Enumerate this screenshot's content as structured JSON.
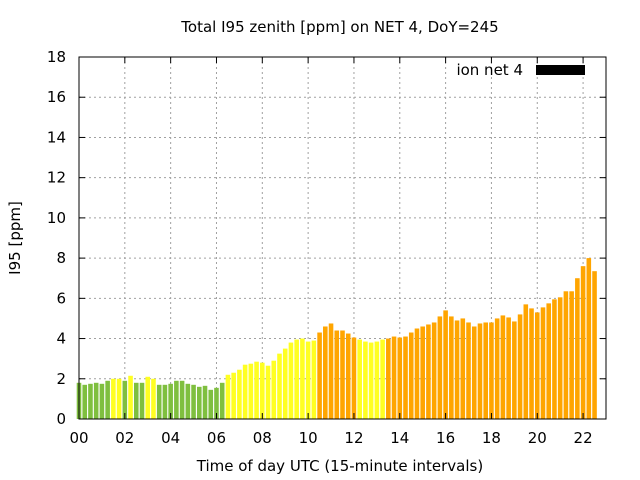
{
  "chart_data": {
    "type": "bar",
    "title": "Total I95 zenith [ppm] on NET 4, DoY=245",
    "xlabel": "Time of day UTC (15-minute intervals)",
    "ylabel": "I95 [ppm]",
    "xlim": [
      0,
      23.0
    ],
    "ylim": [
      0,
      18
    ],
    "bar_width_hours": 0.2,
    "x_ticks": [
      {
        "value": 0,
        "label": "00"
      },
      {
        "value": 2,
        "label": "02"
      },
      {
        "value": 4,
        "label": "04"
      },
      {
        "value": 6,
        "label": "06"
      },
      {
        "value": 8,
        "label": "08"
      },
      {
        "value": 10,
        "label": "10"
      },
      {
        "value": 12,
        "label": "12"
      },
      {
        "value": 14,
        "label": "14"
      },
      {
        "value": 16,
        "label": "16"
      },
      {
        "value": 18,
        "label": "18"
      },
      {
        "value": 20,
        "label": "20"
      },
      {
        "value": 22,
        "label": "22"
      }
    ],
    "y_ticks": [
      {
        "value": 0,
        "label": "0"
      },
      {
        "value": 2,
        "label": "2"
      },
      {
        "value": 4,
        "label": "4"
      },
      {
        "value": 6,
        "label": "6"
      },
      {
        "value": 8,
        "label": "8"
      },
      {
        "value": 10,
        "label": "10"
      },
      {
        "value": 12,
        "label": "12"
      },
      {
        "value": 14,
        "label": "14"
      },
      {
        "value": 16,
        "label": "16"
      },
      {
        "value": 18,
        "label": "18"
      }
    ],
    "grid": true,
    "legend": {
      "label": "ion net 4",
      "position": "top-right",
      "color": "#000000"
    },
    "colors": {
      "green": "#7fbf3f",
      "yellow": "#ffff22",
      "orange": "#ffa500"
    },
    "series": [
      {
        "name": "ion net 4",
        "x_start_hour": 0,
        "x_step_hours": 0.25,
        "values": [
          1.8,
          1.7,
          1.75,
          1.8,
          1.75,
          1.9,
          2.0,
          2.0,
          1.9,
          2.15,
          1.8,
          1.8,
          2.1,
          2.0,
          1.7,
          1.7,
          1.75,
          1.9,
          1.9,
          1.75,
          1.7,
          1.6,
          1.65,
          1.45,
          1.55,
          1.8,
          2.2,
          2.3,
          2.45,
          2.7,
          2.75,
          2.85,
          2.8,
          2.65,
          2.9,
          3.25,
          3.5,
          3.8,
          3.95,
          4.0,
          3.85,
          3.9,
          4.3,
          4.6,
          4.75,
          4.4,
          4.4,
          4.25,
          4.05,
          3.95,
          3.85,
          3.8,
          3.85,
          3.95,
          4.0,
          4.1,
          4.05,
          4.1,
          4.3,
          4.5,
          4.6,
          4.7,
          4.8,
          5.1,
          5.4,
          5.1,
          4.9,
          5.0,
          4.8,
          4.6,
          4.75,
          4.8,
          4.8,
          5.0,
          5.15,
          5.05,
          4.85,
          5.2,
          5.7,
          5.5,
          5.3,
          5.55,
          5.75,
          5.95,
          6.05,
          6.35,
          6.35,
          7.0,
          7.6,
          8.0,
          7.35
        ],
        "colors": [
          "green",
          "green",
          "green",
          "green",
          "green",
          "green",
          "yellow",
          "yellow",
          "green",
          "yellow",
          "green",
          "green",
          "yellow",
          "yellow",
          "green",
          "green",
          "green",
          "green",
          "green",
          "green",
          "green",
          "green",
          "green",
          "green",
          "green",
          "green",
          "yellow",
          "yellow",
          "yellow",
          "yellow",
          "yellow",
          "yellow",
          "yellow",
          "yellow",
          "yellow",
          "yellow",
          "yellow",
          "yellow",
          "yellow",
          "yellow",
          "yellow",
          "yellow",
          "orange",
          "orange",
          "orange",
          "orange",
          "orange",
          "orange",
          "orange",
          "yellow",
          "yellow",
          "yellow",
          "yellow",
          "yellow",
          "orange",
          "orange",
          "orange",
          "orange",
          "orange",
          "orange",
          "orange",
          "orange",
          "orange",
          "orange",
          "orange",
          "orange",
          "orange",
          "orange",
          "orange",
          "orange",
          "orange",
          "orange",
          "orange",
          "orange",
          "orange",
          "orange",
          "orange",
          "orange",
          "orange",
          "orange",
          "orange",
          "orange",
          "orange",
          "orange",
          "orange",
          "orange",
          "orange",
          "orange",
          "orange",
          "orange",
          "orange"
        ]
      }
    ]
  }
}
